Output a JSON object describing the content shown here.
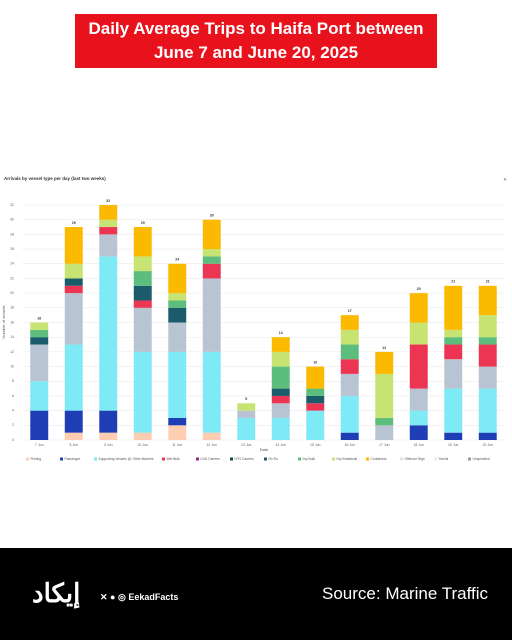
{
  "header": {
    "title_lines": [
      "Daily Average Trips to Haifa Port between",
      "June 7 and June 20, 2025"
    ]
  },
  "chart_data": {
    "type": "stacked_bar",
    "title": "Arrivals by vessel type per day (last two weeks)",
    "x_label": "Date",
    "y_label": "Number of vessels",
    "categories": [
      "7 Jun",
      "8 Jun",
      "9 Jun",
      "10 Jun",
      "11 Jun",
      "12 Jun",
      "13 Jun",
      "14 Jun",
      "15 Jun",
      "16 Jun",
      "17 Jun",
      "18 Jun",
      "19 Jun",
      "20 Jun"
    ],
    "totals": [
      16,
      29,
      32,
      29,
      24,
      30,
      5,
      14,
      10,
      17,
      12,
      20,
      21,
      21
    ],
    "series": [
      {
        "name": "Fishing",
        "color": "#ffcdb2",
        "values": [
          0,
          1,
          1,
          1,
          2,
          1,
          0,
          0,
          0,
          0,
          0,
          0,
          0,
          0
        ]
      },
      {
        "name": "Passenger",
        "color": "#1f3db5",
        "values": [
          4,
          3,
          3,
          0,
          1,
          0,
          0,
          0,
          0,
          1,
          0,
          2,
          1,
          1
        ]
      },
      {
        "name": "Supporting Vessels",
        "color": "#7deaf6",
        "values": [
          4,
          9,
          21,
          11,
          9,
          11,
          3,
          3,
          4,
          5,
          0,
          2,
          6,
          6
        ]
      },
      {
        "name": "Other Markets",
        "color": "#b8c4d2",
        "values": [
          5,
          7,
          3,
          6,
          4,
          10,
          1,
          2,
          0,
          3,
          2,
          3,
          4,
          3
        ]
      },
      {
        "name": "Wet Bulk",
        "color": "#ec3453",
        "values": [
          0,
          1,
          1,
          1,
          0,
          2,
          0,
          1,
          1,
          2,
          0,
          6,
          2,
          3
        ]
      },
      {
        "name": "LNG Carriers",
        "color": "#8a2a7a",
        "values": [
          0,
          0,
          0,
          0,
          0,
          0,
          0,
          0,
          0,
          0,
          0,
          0,
          0,
          0
        ]
      },
      {
        "name": "LPG Carriers",
        "color": "#0e4f3c",
        "values": [
          0,
          0,
          0,
          0,
          0,
          0,
          0,
          0,
          0,
          0,
          0,
          0,
          0,
          0
        ]
      },
      {
        "name": "Ro Ro",
        "color": "#1a5c6c",
        "values": [
          1,
          1,
          0,
          2,
          2,
          0,
          0,
          1,
          1,
          0,
          0,
          0,
          0,
          0
        ]
      },
      {
        "name": "Dry Bulk",
        "color": "#5cbd7c",
        "values": [
          1,
          0,
          0,
          2,
          1,
          1,
          0,
          3,
          1,
          2,
          1,
          0,
          1,
          1
        ]
      },
      {
        "name": "Dry Breakbulk",
        "color": "#c7e472",
        "values": [
          1,
          2,
          1,
          2,
          1,
          1,
          1,
          2,
          0,
          2,
          6,
          3,
          1,
          3
        ]
      },
      {
        "name": "Containers",
        "color": "#fbb900",
        "values": [
          0,
          5,
          2,
          4,
          4,
          4,
          0,
          2,
          3,
          2,
          3,
          4,
          6,
          4
        ]
      },
      {
        "name": "Offshore Rigs",
        "color": "#e2e2e2",
        "values": [
          0,
          0,
          0,
          0,
          0,
          0,
          0,
          0,
          0,
          0,
          0,
          0,
          0,
          0
        ]
      },
      {
        "name": "Yachts",
        "color": "#ececec",
        "values": [
          0,
          0,
          0,
          0,
          0,
          0,
          0,
          0,
          0,
          0,
          0,
          0,
          0,
          0
        ]
      },
      {
        "name": "Unspecified",
        "color": "#9a9a9a",
        "values": [
          0,
          0,
          0,
          0,
          0,
          0,
          0,
          0,
          0,
          0,
          0,
          0,
          0,
          0
        ]
      }
    ],
    "ylim": [
      0,
      32
    ],
    "yticks": [
      0,
      2,
      4,
      6,
      8,
      10,
      12,
      14,
      16,
      18,
      20,
      22,
      24,
      26,
      28,
      30,
      32
    ],
    "grid": true
  },
  "footer": {
    "brand": "إيكاد",
    "handle": "EekadFacts",
    "source": "Source: Marine Traffic"
  }
}
